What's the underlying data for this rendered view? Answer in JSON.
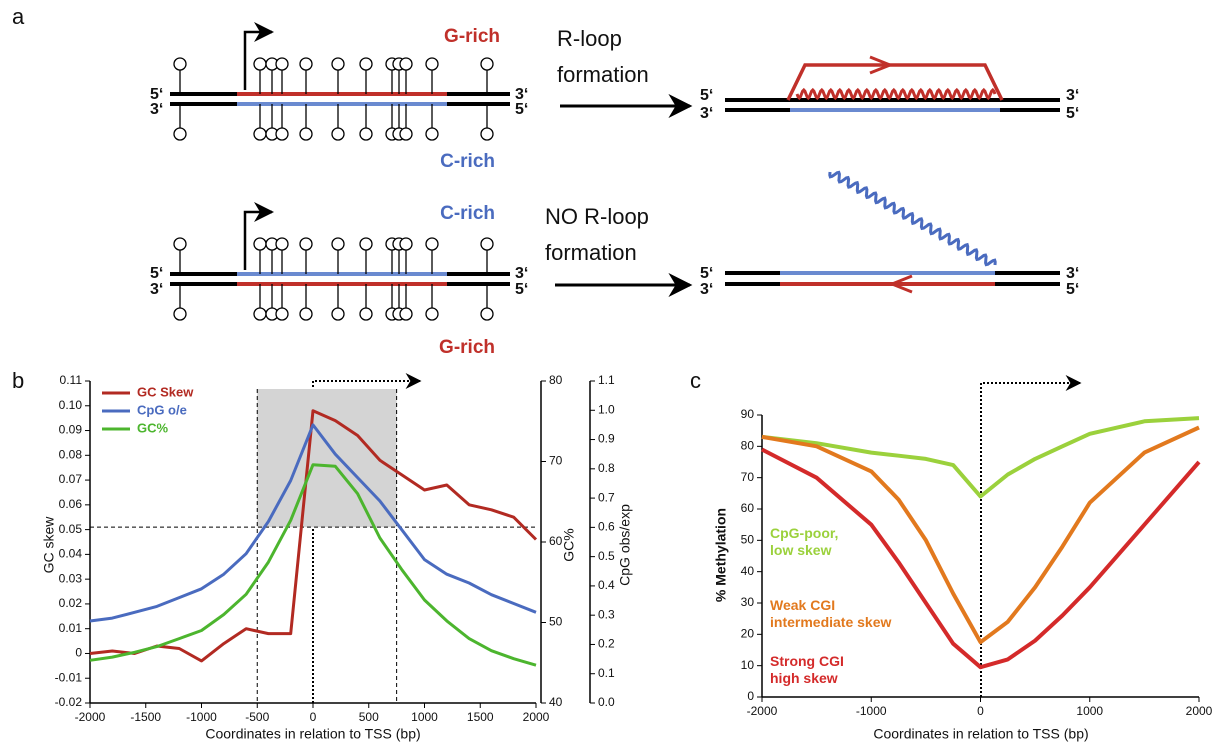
{
  "diagram": {
    "panel": "a",
    "g_rich_top": "G-rich",
    "c_rich_top": "C-rich",
    "c_rich_bottom": "C-rich",
    "g_rich_bottom": "G-rich",
    "r_loop_label": [
      "R-loop",
      "formation"
    ],
    "no_r_loop_label": [
      "NO R-loop",
      "formation"
    ],
    "strand_ends": [
      "5‘",
      "3‘",
      "3‘",
      "5‘",
      "5‘",
      "3‘",
      "3‘",
      "5‘",
      "5‘",
      "3‘",
      "3‘",
      "5‘",
      "5‘",
      "3‘",
      "3‘",
      "5‘"
    ]
  },
  "chart_data": [
    {
      "type": "line",
      "panel": "b",
      "xlabel": "Coordinates in relation to TSS (bp)",
      "ylabel": "GC skew",
      "y2label": "GC%",
      "y3label": "CpG obs/exp",
      "x": [
        -2000,
        -1800,
        -1600,
        -1400,
        -1200,
        -1000,
        -800,
        -600,
        -400,
        -200,
        0,
        200,
        400,
        600,
        800,
        1000,
        1200,
        1400,
        1600,
        1800,
        2000
      ],
      "xlim": [
        -2000,
        2000
      ],
      "xticks": [
        -2000,
        -1500,
        -1000,
        -500,
        0,
        500,
        1000,
        1500,
        2000
      ],
      "ylim": [
        -0.02,
        0.11
      ],
      "yticks": [
        -0.02,
        -0.01,
        0,
        0.01,
        0.02,
        0.03,
        0.04,
        0.05,
        0.06,
        0.07,
        0.08,
        0.09,
        {
          "value": 0.1,
          "label": "0.10"
        },
        0.11
      ],
      "y2lim": [
        40,
        80
      ],
      "y2ticks": [
        40,
        50,
        60,
        70,
        80
      ],
      "y3lim": [
        0,
        1.1
      ],
      "y3ticks": [
        {
          "value": 0,
          "label": "0.0"
        },
        0.1,
        0.2,
        0.3,
        0.4,
        0.5,
        0.6,
        0.7,
        0.8,
        0.9,
        {
          "value": 1,
          "label": "1.0"
        },
        1.1
      ],
      "highlight_x": [
        -500,
        750
      ],
      "threshold_y": 0.051,
      "series": [
        {
          "name": "GC Skew",
          "color": "#b22a22",
          "axis": "y",
          "values": [
            0.0,
            0.001,
            0.0,
            0.003,
            0.002,
            -0.003,
            0.004,
            0.01,
            0.008,
            0.008,
            0.098,
            0.094,
            0.088,
            0.078,
            0.072,
            0.066,
            0.068,
            0.06,
            0.058,
            0.055,
            0.046
          ]
        },
        {
          "name": "CpG o/e",
          "color": "#4a6bbf",
          "axis": "y3",
          "values": [
            0.28,
            0.29,
            0.31,
            0.33,
            0.36,
            0.39,
            0.44,
            0.51,
            0.62,
            0.76,
            0.95,
            0.85,
            0.77,
            0.69,
            0.59,
            0.49,
            0.44,
            0.41,
            0.37,
            0.34,
            0.31
          ]
        },
        {
          "name": "GC%",
          "color": "#4cb52e",
          "axis": "y2",
          "values": [
            45.3,
            45.7,
            46.3,
            47,
            48,
            49,
            51,
            53.5,
            57.5,
            62.7,
            69.6,
            69.4,
            66,
            60.5,
            56.5,
            52.8,
            50.2,
            48,
            46.5,
            45.5,
            44.7
          ]
        }
      ]
    },
    {
      "type": "line",
      "panel": "c",
      "xlabel": "Coordinates in relation to TSS (bp)",
      "ylabel": "% Methylation",
      "x": [
        -2000,
        -1500,
        -1000,
        -750,
        -500,
        -250,
        0,
        250,
        500,
        750,
        1000,
        1500,
        2000
      ],
      "xlim": [
        -2000,
        2000
      ],
      "xticks": [
        -2000,
        -1000,
        0,
        1000,
        2000
      ],
      "ylim": [
        0,
        90
      ],
      "yticks": [
        0,
        10,
        20,
        30,
        40,
        50,
        60,
        70,
        80,
        90
      ],
      "series": [
        {
          "name": "CpG-poor,\nlow skew",
          "color": "#9bd13c",
          "values": [
            83,
            81,
            78,
            77,
            76,
            74,
            64,
            71,
            76,
            80,
            84,
            88,
            89
          ]
        },
        {
          "name": "Weak CGI\nintermediate skew",
          "color": "#e2791e",
          "values": [
            83,
            80,
            72,
            63,
            50,
            33,
            17.5,
            24,
            35,
            48,
            62,
            78,
            86
          ]
        },
        {
          "name": "Strong CGI\nhigh skew",
          "color": "#d42a2a",
          "values": [
            79,
            70,
            55,
            43,
            30,
            17,
            9.5,
            12,
            18,
            26,
            35,
            55,
            75
          ]
        }
      ]
    }
  ]
}
